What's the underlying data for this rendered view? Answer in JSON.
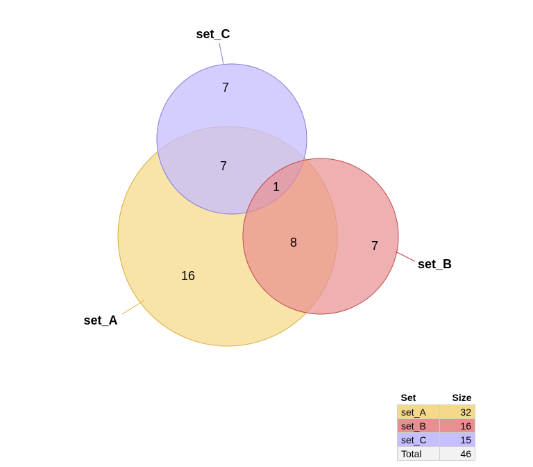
{
  "sets": [
    {
      "key": "a",
      "name": "set_A",
      "size": "32",
      "color": "#f5d98b",
      "stroke": "#d9ad3f"
    },
    {
      "key": "b",
      "name": "set_B",
      "size": "16",
      "color": "#e88f92",
      "stroke": "#c0464b"
    },
    {
      "key": "c",
      "name": "set_C",
      "size": "15",
      "color": "#c5beff",
      "stroke": "#8479d4"
    }
  ],
  "regions": {
    "a_only": "16",
    "b_only": "7",
    "c_only": "7",
    "a_c": "7",
    "a_b": "8",
    "a_b_c": "1"
  },
  "table": {
    "header_set": "Set",
    "header_size": "Size",
    "total_label": "Total",
    "total_value": "46",
    "total_color": "#f2f2f2"
  }
}
